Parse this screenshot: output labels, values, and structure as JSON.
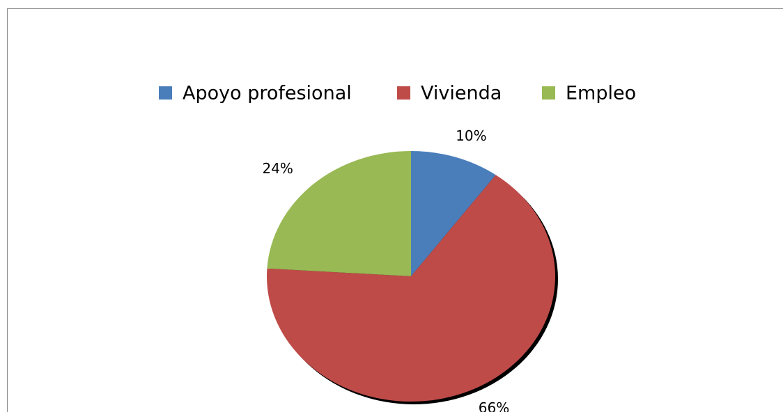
{
  "chart_data": {
    "type": "pie",
    "categories": [
      "Apoyo profesional",
      "Vivienda",
      "Empleo"
    ],
    "values": [
      10,
      66,
      24
    ],
    "value_labels": [
      "10%",
      "66%",
      "24%"
    ],
    "colors": [
      "#4a7ebb",
      "#be4b48",
      "#98b954"
    ],
    "legend": "top"
  }
}
